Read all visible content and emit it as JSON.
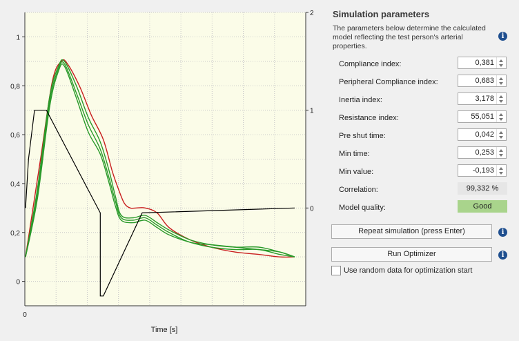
{
  "chart": {
    "xlabel": "Time [s]",
    "left_ticks": [
      "0",
      "0,2",
      "0,4",
      "0,6",
      "0,8",
      "1"
    ],
    "right_ticks": [
      "0",
      "1",
      "2"
    ],
    "x_ticks": [
      "0"
    ],
    "colors": {
      "plot_bg": "#fbfce8",
      "grid": "#c8c8c8",
      "simulated": "#c81e1e",
      "measured": "#2a9a2a",
      "pulse": "#000000"
    }
  },
  "chart_data": {
    "type": "line",
    "title": "",
    "xlabel": "Time [s]",
    "ylabel": "",
    "ylim": [
      -0.1,
      1.1
    ],
    "y2lim": [
      -1,
      2
    ],
    "grid": true,
    "series": [
      {
        "axis": "left",
        "color": "#c81e1e",
        "x": [
          0,
          0.05,
          0.09,
          0.12,
          0.14,
          0.18,
          0.22,
          0.26,
          0.29,
          0.31,
          0.33,
          0.35,
          0.37,
          0.4,
          0.44,
          0.48,
          0.55,
          0.62,
          0.7,
          0.78,
          0.85,
          0.9
        ],
        "values": [
          0.1,
          0.5,
          0.82,
          0.9,
          0.89,
          0.8,
          0.68,
          0.58,
          0.45,
          0.38,
          0.32,
          0.3,
          0.3,
          0.3,
          0.28,
          0.22,
          0.17,
          0.14,
          0.12,
          0.11,
          0.1,
          0.1
        ]
      },
      {
        "axis": "left",
        "color": "#2a9a2a",
        "x": [
          0,
          0.04,
          0.08,
          0.11,
          0.13,
          0.17,
          0.21,
          0.25,
          0.28,
          0.3,
          0.32,
          0.36,
          0.4,
          0.44,
          0.48,
          0.55,
          0.62,
          0.7,
          0.78,
          0.85,
          0.9
        ],
        "values": [
          0.1,
          0.38,
          0.75,
          0.88,
          0.9,
          0.8,
          0.67,
          0.57,
          0.45,
          0.35,
          0.27,
          0.26,
          0.27,
          0.24,
          0.21,
          0.17,
          0.15,
          0.14,
          0.14,
          0.12,
          0.1
        ]
      },
      {
        "axis": "left",
        "color": "#2a9a2a",
        "x": [
          0,
          0.04,
          0.08,
          0.11,
          0.13,
          0.17,
          0.21,
          0.25,
          0.28,
          0.3,
          0.32,
          0.36,
          0.4,
          0.44,
          0.48,
          0.55,
          0.62,
          0.7,
          0.78,
          0.85,
          0.9
        ],
        "values": [
          0.1,
          0.36,
          0.73,
          0.87,
          0.89,
          0.77,
          0.64,
          0.54,
          0.42,
          0.33,
          0.26,
          0.25,
          0.26,
          0.23,
          0.2,
          0.16,
          0.15,
          0.14,
          0.13,
          0.12,
          0.1
        ]
      },
      {
        "axis": "left",
        "color": "#2a9a2a",
        "x": [
          0,
          0.04,
          0.08,
          0.11,
          0.13,
          0.17,
          0.21,
          0.25,
          0.28,
          0.3,
          0.32,
          0.36,
          0.4,
          0.44,
          0.48,
          0.55,
          0.62,
          0.7,
          0.78,
          0.85,
          0.9
        ],
        "values": [
          0.1,
          0.34,
          0.71,
          0.86,
          0.88,
          0.75,
          0.61,
          0.52,
          0.4,
          0.31,
          0.25,
          0.24,
          0.25,
          0.22,
          0.19,
          0.16,
          0.14,
          0.13,
          0.13,
          0.11,
          0.1
        ]
      },
      {
        "axis": "right",
        "color": "#000000",
        "x": [
          0,
          0.01,
          0.03,
          0.07,
          0.25,
          0.25,
          0.26,
          0.39,
          0.9
        ],
        "values": [
          0,
          0.5,
          1,
          1,
          -0.05,
          -0.9,
          -0.9,
          -0.05,
          0
        ]
      }
    ]
  },
  "panel": {
    "title": "Simulation parameters",
    "description": "The parameters below determine the calculated model reflecting the test person's arterial properties.",
    "info_icon": "info-icon",
    "params": [
      {
        "label": "Compliance index:",
        "value": "0,381"
      },
      {
        "label": "Peripheral Compliance index:",
        "value": "0,683"
      },
      {
        "label": "Inertia index:",
        "value": "3,178"
      },
      {
        "label": "Resistance index:",
        "value": "55,051"
      },
      {
        "label": "Pre shut time:",
        "value": "0,042"
      },
      {
        "label": "Min time:",
        "value": "0,253"
      },
      {
        "label": "Min value:",
        "value": "-0,193"
      }
    ],
    "correlation": {
      "label": "Correlation:",
      "value": "99,332 %"
    },
    "quality": {
      "label": "Model quality:",
      "value": "Good",
      "color": "#a9d48c"
    },
    "repeat_button": "Repeat simulation (press Enter)",
    "optimizer_button": "Run Optimizer",
    "random_checkbox": {
      "label": "Use random data for optimization start",
      "checked": false
    }
  }
}
